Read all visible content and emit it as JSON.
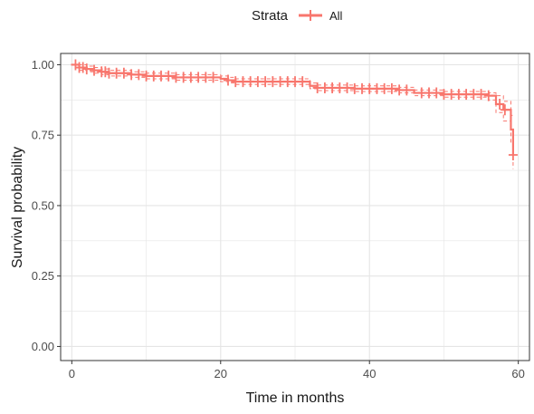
{
  "legend": {
    "title": "Strata",
    "label": "All",
    "placement": "top"
  },
  "chart_data": {
    "type": "line",
    "style": "step",
    "xlabel": "Time in months",
    "ylabel": "Survival probability",
    "xlim": [
      -1.5,
      61.5
    ],
    "ylim": [
      -0.05,
      1.04
    ],
    "xticks": [
      0,
      20,
      40,
      60
    ],
    "xtick_labels": [
      "0",
      "20",
      "40",
      "60"
    ],
    "yticks": [
      0,
      0.25,
      0.5,
      0.75,
      1.0
    ],
    "ytick_labels": [
      "0.00",
      "0.25",
      "0.50",
      "0.75",
      "1.00"
    ],
    "grid": true,
    "colors": {
      "series": "#f8766d",
      "grid": "#e5e5e5",
      "panel_border": "#333333"
    },
    "series": [
      {
        "name": "All",
        "step_x": [
          0,
          1,
          2,
          3,
          4,
          5,
          8,
          10,
          14,
          20,
          21,
          22,
          32,
          33,
          38,
          44,
          46,
          50,
          56,
          57,
          58,
          59
        ],
        "step_y": [
          1.0,
          0.99,
          0.985,
          0.98,
          0.975,
          0.97,
          0.965,
          0.96,
          0.955,
          0.95,
          0.945,
          0.94,
          0.925,
          0.918,
          0.915,
          0.91,
          0.9,
          0.895,
          0.89,
          0.86,
          0.84,
          0.77
        ],
        "end_x": 59.3,
        "end_y": 0.68,
        "upper": [
          1.0,
          1.0,
          0.995,
          0.99,
          0.985,
          0.98,
          0.975,
          0.97,
          0.965,
          0.96,
          0.955,
          0.95,
          0.935,
          0.928,
          0.925,
          0.92,
          0.91,
          0.905,
          0.9,
          0.89,
          0.87,
          0.82
        ],
        "lower": [
          1.0,
          0.98,
          0.975,
          0.97,
          0.965,
          0.96,
          0.955,
          0.95,
          0.945,
          0.94,
          0.935,
          0.93,
          0.915,
          0.908,
          0.905,
          0.9,
          0.89,
          0.885,
          0.875,
          0.83,
          0.8,
          0.72
        ],
        "lower_end": 0.63,
        "censor_x": [
          0.5,
          1,
          1.5,
          2,
          3,
          4,
          4.5,
          5,
          6,
          7,
          8,
          9,
          10,
          11,
          12,
          13,
          14,
          15,
          16,
          17,
          18,
          19,
          21,
          22,
          23,
          24,
          25,
          26,
          27,
          28,
          29,
          30,
          31,
          33,
          34,
          35,
          36,
          37,
          38,
          39,
          40,
          41,
          42,
          43,
          44,
          45,
          47,
          48,
          49,
          50,
          51,
          52,
          53,
          54,
          55,
          56,
          57.5,
          58.2,
          59.3
        ]
      }
    ]
  }
}
